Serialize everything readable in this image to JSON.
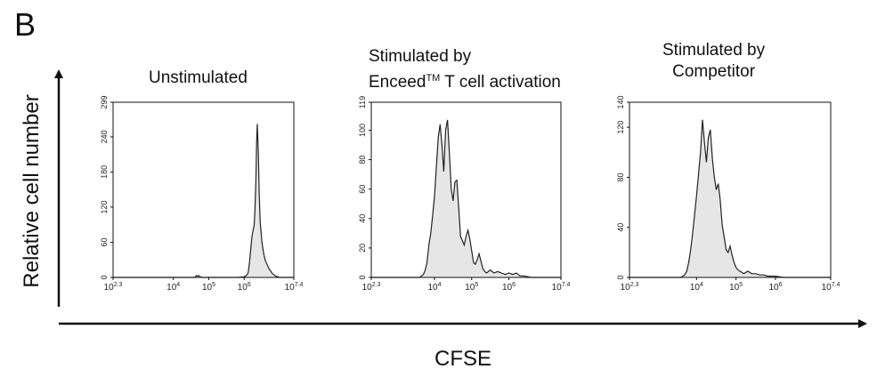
{
  "figure": {
    "panel_letter": "B",
    "y_axis_label": "Relative cell number",
    "x_axis_label": "CFSE"
  },
  "chart_data": [
    {
      "type": "area",
      "title": "Unstimulated",
      "xlabel": "CFSE",
      "ylabel": "Relative cell number",
      "x_scale": "log10",
      "xlim_log10": [
        2.3,
        7.4
      ],
      "x_ticks": [
        {
          "pos": 2.3,
          "base": "10",
          "exp": "2.3"
        },
        {
          "pos": 4,
          "base": "10",
          "exp": "4"
        },
        {
          "pos": 5,
          "base": "10",
          "exp": "5"
        },
        {
          "pos": 6,
          "base": "10",
          "exp": "6"
        },
        {
          "pos": 7.4,
          "base": "10",
          "exp": "7.4"
        }
      ],
      "ylim": [
        0,
        299
      ],
      "y_ticks": [
        "0",
        "60",
        "120",
        "180",
        "240",
        "299"
      ],
      "y_tick_values": [
        0,
        60,
        120,
        180,
        240,
        299
      ],
      "fill_color": "#e6e6e6",
      "line_color": "#222222",
      "x_log10": [
        2.3,
        3.0,
        3.5,
        4.6,
        4.62,
        4.65,
        4.68,
        4.72,
        4.76,
        4.8,
        5.0,
        5.5,
        5.8,
        6.0,
        6.05,
        6.1,
        6.12,
        6.15,
        6.18,
        6.22,
        6.25,
        6.28,
        6.3,
        6.33,
        6.35,
        6.37,
        6.4,
        6.42,
        6.45,
        6.5,
        6.55,
        6.6,
        6.7,
        6.8,
        6.9,
        7.0,
        7.4
      ],
      "counts": [
        0,
        0,
        0,
        0,
        1,
        3,
        2,
        3,
        1,
        0,
        0,
        0,
        0,
        1,
        3,
        6,
        12,
        25,
        45,
        70,
        80,
        88,
        110,
        165,
        230,
        262,
        210,
        150,
        95,
        60,
        40,
        28,
        15,
        6,
        2,
        0,
        0
      ]
    },
    {
      "type": "area",
      "title_lines": [
        "Stimulated by",
        "Enceed",
        "TM",
        " T cell activation"
      ],
      "xlabel": "CFSE",
      "ylabel": "Relative cell number",
      "x_scale": "log10",
      "xlim_log10": [
        2.3,
        7.4
      ],
      "x_ticks": [
        {
          "pos": 2.3,
          "base": "10",
          "exp": "2.3"
        },
        {
          "pos": 4,
          "base": "10",
          "exp": "4"
        },
        {
          "pos": 5,
          "base": "10",
          "exp": "5"
        },
        {
          "pos": 6,
          "base": "10",
          "exp": "6"
        },
        {
          "pos": 7.4,
          "base": "10",
          "exp": "7.4"
        }
      ],
      "ylim": [
        0,
        119
      ],
      "y_ticks": [
        "0",
        "20",
        "40",
        "60",
        "80",
        "100",
        "119"
      ],
      "y_tick_values": [
        0,
        20,
        40,
        60,
        80,
        100,
        119
      ],
      "fill_color": "#e6e6e6",
      "line_color": "#222222",
      "x_log10": [
        2.3,
        3.6,
        3.7,
        3.75,
        3.8,
        3.85,
        3.9,
        3.95,
        4.0,
        4.05,
        4.1,
        4.15,
        4.2,
        4.25,
        4.3,
        4.35,
        4.4,
        4.45,
        4.5,
        4.55,
        4.6,
        4.65,
        4.7,
        4.75,
        4.8,
        4.85,
        4.9,
        4.95,
        5.0,
        5.05,
        5.1,
        5.15,
        5.2,
        5.25,
        5.3,
        5.35,
        5.4,
        5.5,
        5.6,
        5.7,
        5.8,
        5.9,
        6.0,
        6.1,
        6.2,
        6.3,
        6.4,
        6.6,
        7.4
      ],
      "counts": [
        0,
        0,
        2,
        5,
        10,
        22,
        30,
        42,
        55,
        75,
        95,
        104,
        90,
        72,
        100,
        107,
        85,
        60,
        52,
        65,
        66,
        48,
        28,
        25,
        22,
        28,
        32,
        26,
        18,
        10,
        9,
        12,
        16,
        11,
        6,
        4,
        3,
        5,
        3,
        4,
        3,
        2,
        3,
        2,
        3,
        1,
        1,
        0,
        0
      ]
    },
    {
      "type": "area",
      "title_lines": [
        "Stimulated by",
        "Competitor"
      ],
      "xlabel": "CFSE",
      "ylabel": "Relative cell number",
      "x_scale": "log10",
      "xlim_log10": [
        2.3,
        7.4
      ],
      "x_ticks": [
        {
          "pos": 2.3,
          "base": "10",
          "exp": "2.3"
        },
        {
          "pos": 4,
          "base": "10",
          "exp": "4"
        },
        {
          "pos": 5,
          "base": "10",
          "exp": "5"
        },
        {
          "pos": 6,
          "base": "10",
          "exp": "6"
        },
        {
          "pos": 7.4,
          "base": "10",
          "exp": "7.4"
        }
      ],
      "ylim": [
        0,
        140
      ],
      "y_ticks": [
        "0",
        "40",
        "80",
        "120",
        "140"
      ],
      "y_tick_values": [
        0,
        40,
        80,
        120,
        140
      ],
      "fill_color": "#e6e6e6",
      "line_color": "#222222",
      "x_log10": [
        2.3,
        3.6,
        3.7,
        3.75,
        3.8,
        3.85,
        3.9,
        3.95,
        4.0,
        4.05,
        4.1,
        4.15,
        4.2,
        4.25,
        4.3,
        4.35,
        4.4,
        4.45,
        4.5,
        4.55,
        4.6,
        4.65,
        4.7,
        4.75,
        4.8,
        4.85,
        4.9,
        4.95,
        5.0,
        5.05,
        5.1,
        5.2,
        5.3,
        5.4,
        5.5,
        5.6,
        5.7,
        5.8,
        5.9,
        6.0,
        6.2,
        7.4
      ],
      "counts": [
        0,
        0,
        2,
        5,
        12,
        22,
        35,
        50,
        65,
        82,
        100,
        126,
        108,
        92,
        112,
        118,
        95,
        80,
        70,
        75,
        62,
        42,
        32,
        22,
        20,
        25,
        18,
        12,
        8,
        6,
        5,
        3,
        5,
        3,
        3,
        2,
        2,
        1,
        1,
        1,
        0,
        0
      ]
    }
  ]
}
